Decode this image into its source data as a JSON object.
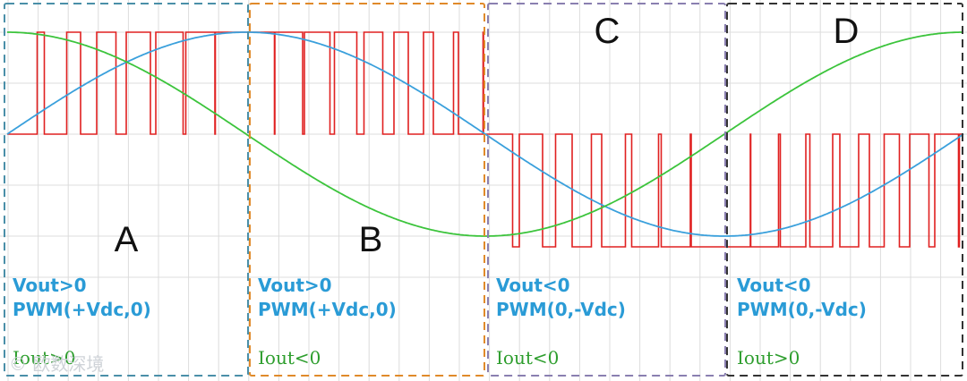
{
  "colors": {
    "grid": "#dcdcdc",
    "pwm": "#e02020",
    "vout_wave": "#3aa0dc",
    "iout_wave": "#3cc43c",
    "label_blue": "#2a9bd6",
    "label_green": "#2e9e2e",
    "box_A": "#4a8fa8",
    "box_B": "#e08a2a",
    "box_C": "#8a7fb0",
    "box_D": "#333333"
  },
  "regions": [
    {
      "letter": "A",
      "vout": "Vout>0",
      "pwm": "PWM(+Vdc,0)",
      "iout": "Iout>0"
    },
    {
      "letter": "B",
      "vout": "Vout>0",
      "pwm": "PWM(+Vdc,0)",
      "iout": "Iout<0"
    },
    {
      "letter": "C",
      "vout": "Vout<0",
      "pwm": "PWM(0,-Vdc)",
      "iout": "Iout<0"
    },
    {
      "letter": "D",
      "vout": "Vout<0",
      "pwm": "PWM(0,-Vdc)",
      "iout": "Iout>0"
    }
  ],
  "watermark": "© 欧数深境"
}
